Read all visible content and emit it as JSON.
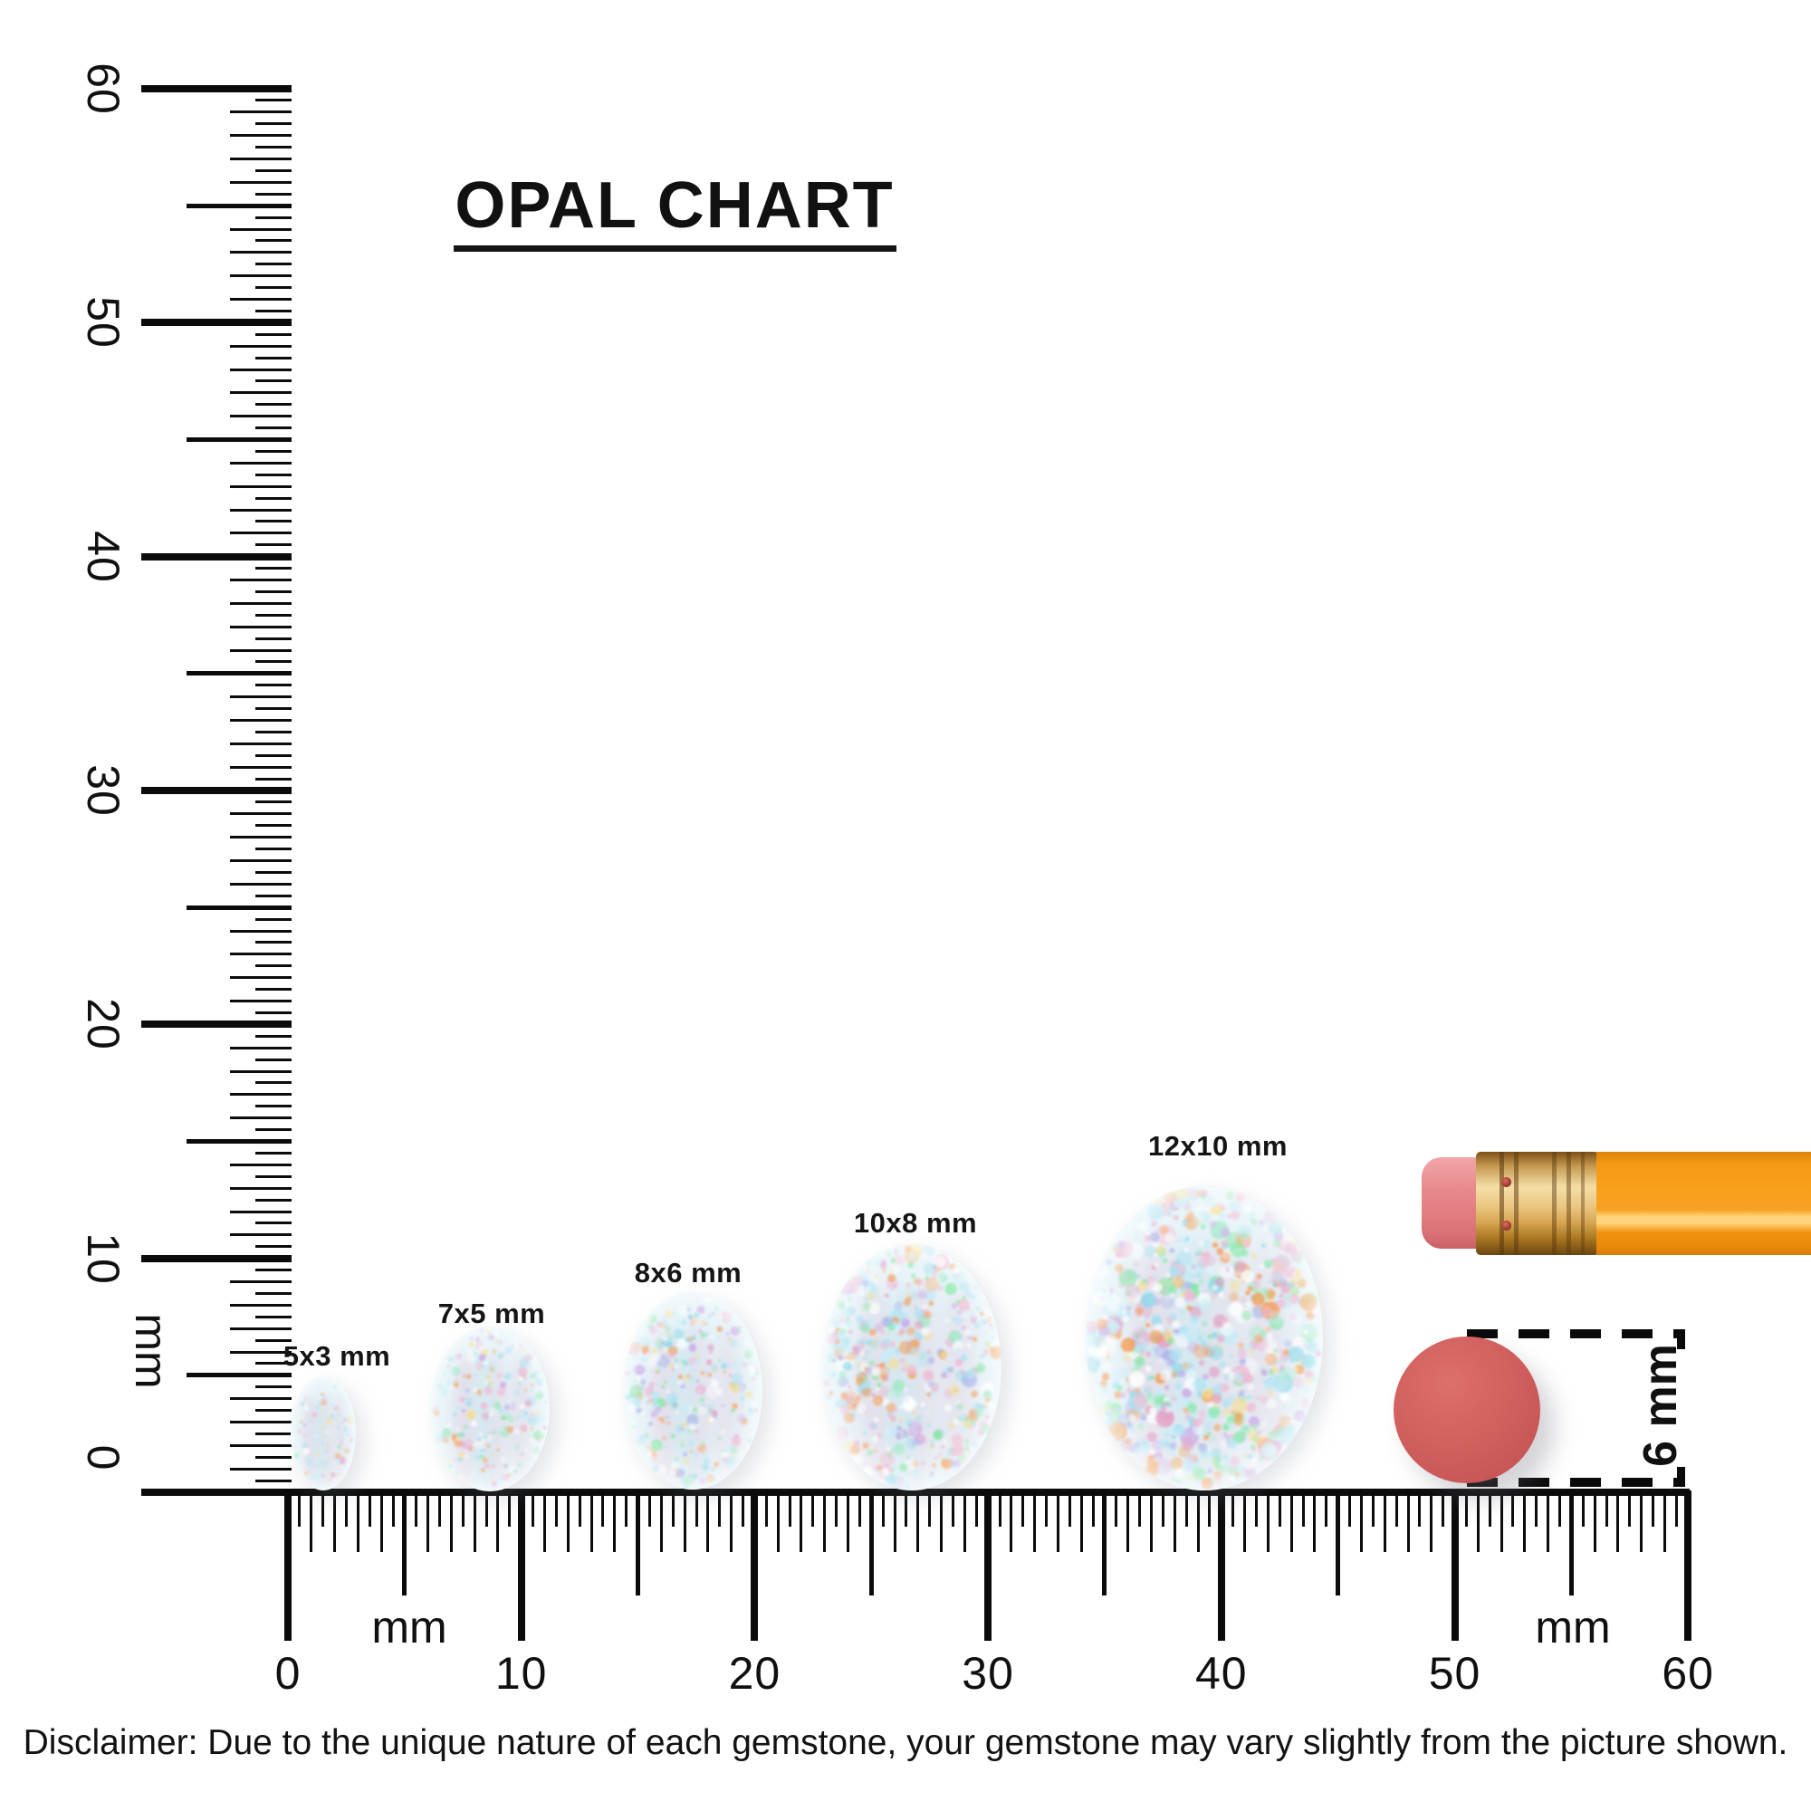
{
  "title": {
    "text": "OPAL CHART"
  },
  "rulers": {
    "unit_label": "mm",
    "range_mm": [
      0,
      60
    ],
    "minor_step_mm": 0.5,
    "vertical": {
      "tick_labels": [
        "0",
        "10",
        "20",
        "30",
        "40",
        "50",
        "60"
      ]
    },
    "horizontal": {
      "tick_labels": [
        "0",
        "10",
        "20",
        "30",
        "40",
        "50",
        "60"
      ]
    }
  },
  "opals": [
    {
      "label": "5x3 mm",
      "size_mm": {
        "width": 3,
        "length": 5
      }
    },
    {
      "label": "7x5 mm",
      "size_mm": {
        "width": 5,
        "length": 7
      }
    },
    {
      "label": "8x6 mm",
      "size_mm": {
        "width": 6,
        "length": 8
      }
    },
    {
      "label": "10x8 mm",
      "size_mm": {
        "width": 8,
        "length": 10
      }
    },
    {
      "label": "12x10 mm",
      "size_mm": {
        "width": 10,
        "length": 12
      }
    }
  ],
  "reference_objects": {
    "pencil": {
      "name": "pencil eraser end",
      "body_color": "#F9A01E",
      "ferrule_color": "#D9A55A",
      "eraser_color": "#E5858A"
    },
    "dot": {
      "label": "6 mm",
      "diameter_mm": 6,
      "color": "#CD5A5A"
    }
  },
  "opal_colors": {
    "base": "#e3f2f7",
    "band": "#e7c6da",
    "band2": "#bfe4ef",
    "speckles": [
      "#aee3f2",
      "#aee3f2",
      "#c5ecf6",
      "#c5ecf6",
      "#8fd9ea",
      "#9fe8c4",
      "#7ce8a0",
      "#f6a35c",
      "#f29a4e",
      "#f8dd8a",
      "#efb9d4",
      "#efb9d4",
      "#e39ec4",
      "#a9b4ea",
      "#caa7e8",
      "#ffffff",
      "#ffffff",
      "#f3fbfd"
    ]
  },
  "disclaimer": {
    "text": "Disclaimer: Due to the unique nature of each gemstone, your gemstone may vary slightly from the picture shown."
  }
}
